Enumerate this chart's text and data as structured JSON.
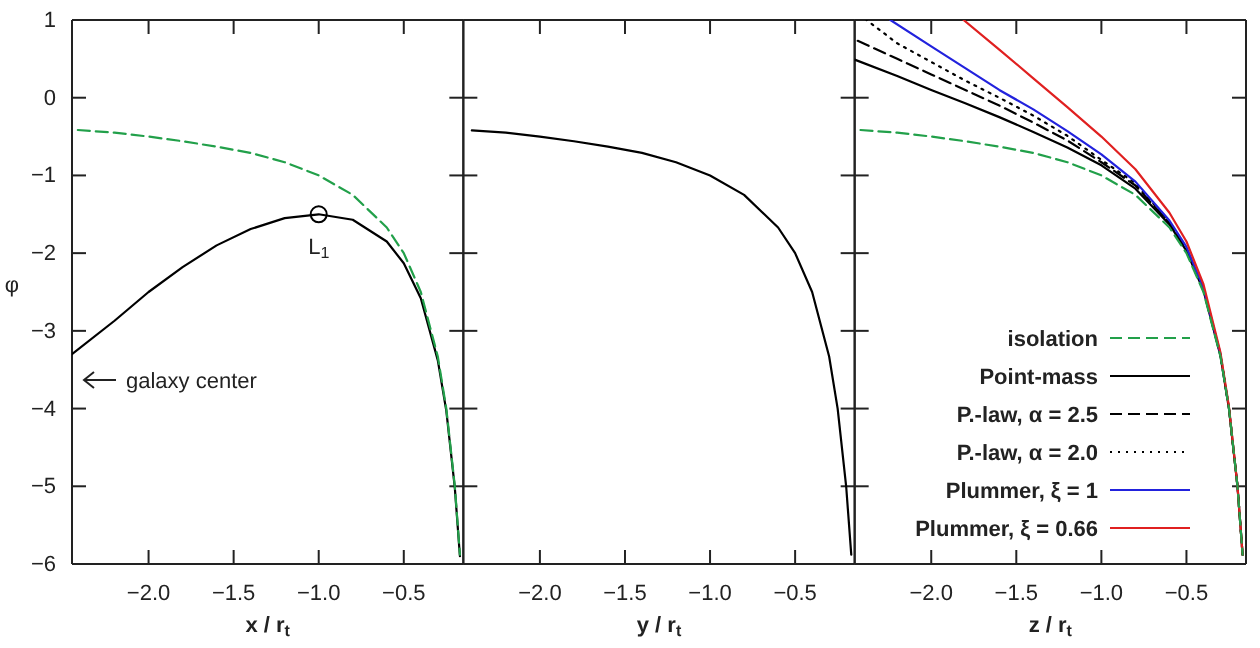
{
  "chart_data": [
    {
      "type": "line",
      "xlabel": "x / r$_{t}$",
      "ylabel": "φ",
      "xlim": [
        -2.45,
        -0.15
      ],
      "ylim": [
        -6,
        1
      ],
      "xticks": [
        {
          "value": -2.0,
          "label": "−2.0"
        },
        {
          "value": -1.5,
          "label": "−1.5"
        },
        {
          "value": -1.0,
          "label": "−1.0"
        },
        {
          "value": -0.5,
          "label": "−0.5"
        }
      ],
      "yticks": [
        {
          "value": -6,
          "label": "−6"
        },
        {
          "value": -5,
          "label": "−5"
        },
        {
          "value": -4,
          "label": "−4"
        },
        {
          "value": -3,
          "label": "−3"
        },
        {
          "value": -2,
          "label": "−2"
        },
        {
          "value": -1,
          "label": "−1"
        },
        0,
        1
      ],
      "grid": false,
      "legend": false,
      "series": [
        {
          "color": "#22a04a",
          "line_style": "dashed",
          "x": [
            -2.45,
            -2.2,
            -2.0,
            -1.8,
            -1.6,
            -1.4,
            -1.2,
            -1.0,
            -0.8,
            -0.6,
            -0.5,
            -0.4,
            -0.3,
            -0.25,
            -0.2,
            -0.17
          ],
          "values": [
            -0.41,
            -0.45,
            -0.5,
            -0.56,
            -0.63,
            -0.71,
            -0.83,
            -1.0,
            -1.25,
            -1.67,
            -2.0,
            -2.5,
            -3.33,
            -4.0,
            -5.0,
            -5.88
          ]
        },
        {
          "color": "#000000",
          "line_style": "solid",
          "x": [
            -2.45,
            -2.2,
            -2.0,
            -1.8,
            -1.6,
            -1.4,
            -1.2,
            -1.0,
            -0.8,
            -0.6,
            -0.5,
            -0.4,
            -0.3,
            -0.25,
            -0.2,
            -0.17
          ],
          "values": [
            -3.3,
            -2.87,
            -2.5,
            -2.18,
            -1.9,
            -1.69,
            -1.55,
            -1.5,
            -1.57,
            -1.85,
            -2.13,
            -2.58,
            -3.38,
            -4.03,
            -5.02,
            -5.9
          ]
        },
        {
          "type": "scatter",
          "marker": "circle",
          "color": "#000000",
          "x": [
            -1.0
          ],
          "values": [
            -1.5
          ]
        }
      ],
      "annotations": [
        {
          "text": "L$_{1}$",
          "x": -1.0,
          "y": -1.5
        },
        "galaxy center"
      ]
    },
    {
      "type": "line",
      "xlabel": "y / r$_{t}$",
      "xlim": [
        -2.45,
        -0.15
      ],
      "ylim": [
        -6,
        1
      ],
      "tick_labels": "x",
      "xticks": [
        {
          "value": -2.0,
          "label": "−2.0"
        },
        {
          "value": -1.5,
          "label": "−1.5"
        },
        {
          "value": -1.0,
          "label": "−1.0"
        },
        {
          "value": -0.5,
          "label": "−0.5"
        }
      ],
      "yticks": [
        -6,
        -5,
        -4,
        -3,
        -2,
        -1,
        0,
        1
      ],
      "grid": false,
      "legend": false,
      "series": [
        {
          "color": "#000000",
          "line_style": "solid",
          "x": [
            -2.4,
            -2.2,
            -2.0,
            -1.8,
            -1.6,
            -1.4,
            -1.2,
            -1.0,
            -0.8,
            -0.6,
            -0.5,
            -0.4,
            -0.3,
            -0.25,
            -0.2,
            -0.17
          ],
          "values": [
            -0.42,
            -0.45,
            -0.5,
            -0.56,
            -0.63,
            -0.71,
            -0.83,
            -1.0,
            -1.25,
            -1.67,
            -2.0,
            -2.5,
            -3.33,
            -4.0,
            -5.0,
            -5.88
          ]
        }
      ]
    },
    {
      "type": "line",
      "xlabel": "z / r$_{t}$",
      "xlim": [
        -2.45,
        -0.15
      ],
      "ylim": [
        -6,
        1
      ],
      "tick_labels": "x",
      "xticks": [
        {
          "value": -2.0,
          "label": "−2.0"
        },
        {
          "value": -1.5,
          "label": "−1.5"
        },
        {
          "value": -1.0,
          "label": "−1.0"
        },
        {
          "value": -0.5,
          "label": "−0.5"
        }
      ],
      "yticks": [
        -6,
        -5,
        -4,
        -3,
        -2,
        -1,
        0,
        1
      ],
      "grid": false,
      "legend": "bottom right",
      "series": [
        {
          "name": "isolation",
          "color": "#22a04a",
          "line_style": "dashed",
          "x": [
            -2.45,
            -2.2,
            -2.0,
            -1.8,
            -1.6,
            -1.4,
            -1.2,
            -1.0,
            -0.8,
            -0.6,
            -0.5,
            -0.4,
            -0.3,
            -0.25,
            -0.2,
            -0.17
          ],
          "values": [
            -0.41,
            -0.45,
            -0.5,
            -0.56,
            -0.63,
            -0.71,
            -0.83,
            -1.0,
            -1.25,
            -1.67,
            -2.0,
            -2.5,
            -3.33,
            -4.0,
            -5.0,
            -5.88
          ]
        },
        {
          "name": "Point-mass",
          "color": "#000000",
          "line_style": "solid",
          "x": [
            -2.45,
            -2.2,
            -2.0,
            -1.8,
            -1.6,
            -1.4,
            -1.2,
            -1.0,
            -0.8,
            -0.6,
            -0.5,
            -0.4,
            -0.3,
            -0.25,
            -0.2,
            -0.17
          ],
          "values": [
            0.49,
            0.28,
            0.1,
            -0.07,
            -0.25,
            -0.44,
            -0.64,
            -0.87,
            -1.17,
            -1.63,
            -1.97,
            -2.48,
            -3.32,
            -4.0,
            -5.0,
            -5.88
          ]
        },
        {
          "name": "P.-law, α = 2.5",
          "color": "#000000",
          "line_style": "dashed",
          "x": [
            -2.45,
            -2.2,
            -2.0,
            -1.8,
            -1.6,
            -1.4,
            -1.2,
            -1.0,
            -0.8,
            -0.6,
            -0.5,
            -0.4,
            -0.3,
            -0.25,
            -0.2,
            -0.17
          ],
          "values": [
            0.75,
            0.5,
            0.3,
            0.1,
            -0.1,
            -0.32,
            -0.55,
            -0.83,
            -1.13,
            -1.61,
            -1.96,
            -2.47,
            -3.31,
            -4.0,
            -5.0,
            -5.88
          ]
        },
        {
          "name": "P.-law, α = 2.0",
          "color": "#000000",
          "line_style": "dotted",
          "x": [
            -2.38,
            -2.2,
            -2.0,
            -1.8,
            -1.6,
            -1.4,
            -1.2,
            -1.0,
            -0.8,
            -0.6,
            -0.5,
            -0.4,
            -0.3,
            -0.25,
            -0.2,
            -0.17
          ],
          "values": [
            1.0,
            0.7,
            0.46,
            0.22,
            0.0,
            -0.23,
            -0.49,
            -0.8,
            -1.1,
            -1.6,
            -1.95,
            -2.46,
            -3.3,
            -4.0,
            -5.0,
            -5.88
          ]
        },
        {
          "name": "Plummer, ξ = 1",
          "color": "#2222dd",
          "line_style": "solid",
          "x": [
            -2.24,
            -2.0,
            -1.8,
            -1.6,
            -1.4,
            -1.2,
            -1.0,
            -0.8,
            -0.6,
            -0.5,
            -0.4,
            -0.3
          ],
          "values": [
            1.0,
            0.66,
            0.38,
            0.1,
            -0.15,
            -0.43,
            -0.73,
            -1.08,
            -1.58,
            -1.92,
            -2.45,
            -3.3
          ]
        },
        {
          "name": "Plummer, ξ = 0.66",
          "color": "#e02020",
          "line_style": "solid",
          "x": [
            -1.81,
            -1.6,
            -1.4,
            -1.2,
            -1.0,
            -0.8,
            -0.6,
            -0.5,
            -0.4,
            -0.3,
            -0.25,
            -0.2,
            -0.17
          ],
          "values": [
            1.0,
            0.62,
            0.25,
            -0.12,
            -0.5,
            -0.92,
            -1.48,
            -1.85,
            -2.4,
            -3.28,
            -3.98,
            -5.0,
            -5.88
          ]
        }
      ]
    }
  ]
}
